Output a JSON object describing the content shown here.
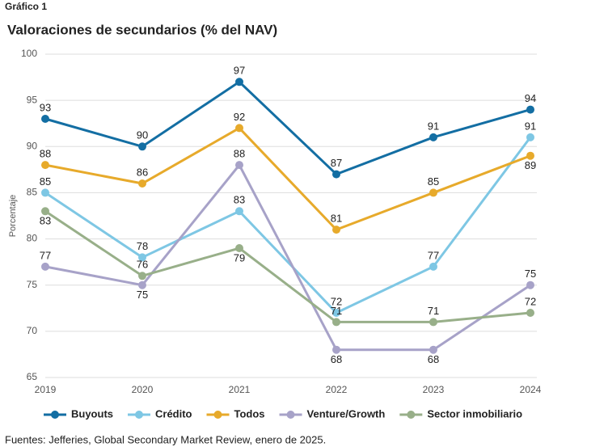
{
  "chart_data": {
    "type": "line",
    "header": "Gráfico 1",
    "title": "Valoraciones de secundarios (% del NAV)",
    "y_label": "Porcentaje",
    "source": "Fuentes: Jefferies, Global Secondary Market Review, enero de 2025.",
    "categories": [
      "2019",
      "2020",
      "2021",
      "2022",
      "2023",
      "2024"
    ],
    "series": [
      {
        "name": "Buyouts",
        "color": "#136ea3",
        "values": [
          93,
          90,
          97,
          87,
          91,
          94
        ]
      },
      {
        "name": "Crédito",
        "color": "#7ec7e4",
        "values": [
          85,
          78,
          83,
          72,
          77,
          91
        ]
      },
      {
        "name": "Todos",
        "color": "#e7aa2b",
        "values": [
          88,
          86,
          92,
          81,
          85,
          89
        ]
      },
      {
        "name": "Venture/Growth",
        "color": "#a7a2c8",
        "values": [
          77,
          75,
          88,
          68,
          68,
          75
        ]
      },
      {
        "name": "Sector inmobiliario",
        "color": "#98af89",
        "values": [
          83,
          76,
          79,
          71,
          71,
          72
        ]
      }
    ],
    "ylim": [
      65,
      100
    ],
    "yticks": [
      65,
      70,
      75,
      80,
      85,
      90,
      95,
      100
    ],
    "grid": true,
    "legend": "bottom"
  }
}
